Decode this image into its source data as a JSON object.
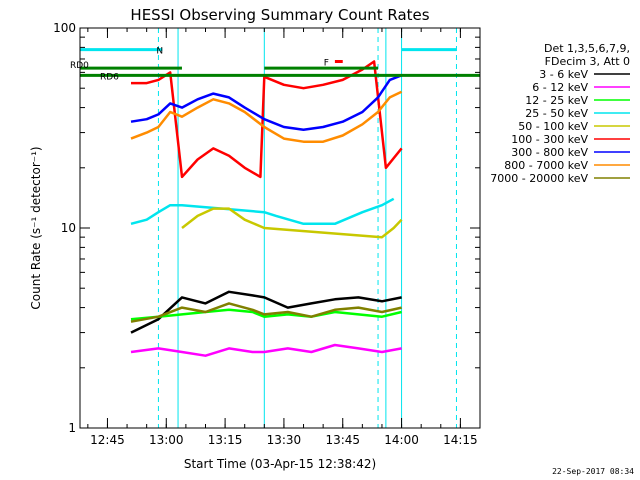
{
  "chart_data": {
    "type": "line",
    "title": "HESSI Observing Summary Count Rates",
    "xlabel": "Start Time (03-Apr-15 12:38:42)",
    "ylabel": "Count Rate (s⁻¹ detector⁻¹)",
    "footer_date": "22-Sep-2017 08:34",
    "xlim": [
      "12:38",
      "14:20"
    ],
    "x_ticks": [
      "12:45",
      "13:00",
      "13:15",
      "13:30",
      "13:45",
      "14:00",
      "14:15"
    ],
    "ylim": [
      1,
      100
    ],
    "y_scale": "log",
    "y_ticks": [
      {
        "value": 1,
        "label": "1"
      },
      {
        "value": 10,
        "label": "10"
      },
      {
        "value": 100,
        "label": "100"
      }
    ],
    "legend": {
      "placement": "right-outside",
      "header": [
        "Det 1,3,5,6,7,9,",
        "FDecim 3, Att 0"
      ]
    },
    "flags": [
      {
        "name": "N",
        "color": "#00e5ee",
        "level": 78,
        "segments": [
          [
            "12:38",
            "12:59"
          ],
          [
            "14:00",
            "14:14"
          ]
        ]
      },
      {
        "name": "F",
        "color": "#ff0000",
        "level": 68,
        "segments": [
          [
            "13:43",
            "13:45"
          ]
        ]
      },
      {
        "name": "RD0",
        "color": "#008000",
        "level": 63,
        "segments": [
          [
            "12:38",
            "13:04"
          ],
          [
            "13:25",
            "13:54"
          ]
        ]
      },
      {
        "name": "RD6",
        "color": "#008000",
        "level": 58,
        "segments": [
          [
            "12:38",
            "14:20"
          ]
        ]
      }
    ],
    "vlines": {
      "color": "#00e5ee",
      "solid": [
        "12:38",
        "13:03",
        "13:25",
        "13:56",
        "14:00"
      ],
      "dashed": [
        "12:58",
        "13:54",
        "14:14"
      ]
    },
    "series": [
      {
        "name": "3 - 6 keV",
        "color": "#000000",
        "x": [
          "12:51",
          "12:58",
          "13:04",
          "13:10",
          "13:16",
          "13:22",
          "13:25",
          "13:31",
          "13:37",
          "13:43",
          "13:49",
          "13:55",
          "14:00"
        ],
        "y": [
          3,
          3.5,
          4.5,
          4.2,
          4.8,
          4.6,
          4.5,
          4.0,
          4.2,
          4.4,
          4.5,
          4.3,
          4.5
        ]
      },
      {
        "name": "6 - 12 keV",
        "color": "#ff00ff",
        "x": [
          "12:51",
          "12:58",
          "13:04",
          "13:10",
          "13:16",
          "13:22",
          "13:25",
          "13:31",
          "13:37",
          "13:43",
          "13:49",
          "13:55",
          "14:00"
        ],
        "y": [
          2.4,
          2.5,
          2.4,
          2.3,
          2.5,
          2.4,
          2.4,
          2.5,
          2.4,
          2.6,
          2.5,
          2.4,
          2.5
        ]
      },
      {
        "name": "12 - 25 keV",
        "color": "#00ff00",
        "x": [
          "12:51",
          "12:58",
          "13:04",
          "13:10",
          "13:16",
          "13:22",
          "13:25",
          "13:31",
          "13:37",
          "13:43",
          "13:49",
          "13:55",
          "14:00"
        ],
        "y": [
          3.5,
          3.6,
          3.7,
          3.8,
          3.9,
          3.8,
          3.6,
          3.7,
          3.6,
          3.8,
          3.7,
          3.6,
          3.8
        ]
      },
      {
        "name": "25 - 50 keV",
        "color": "#00e5ee",
        "x": [
          "12:51",
          "12:55",
          "12:58",
          "13:01",
          "13:04",
          "13:25",
          "13:28",
          "13:35",
          "13:43",
          "13:50",
          "13:55",
          "13:58"
        ],
        "y": [
          10.5,
          11,
          12,
          13,
          13,
          12,
          11.5,
          10.5,
          10.5,
          12,
          13,
          14
        ]
      },
      {
        "name": "50 - 100 keV",
        "color": "#c8c800",
        "x": [
          "13:04",
          "13:08",
          "13:12",
          "13:16",
          "13:20",
          "13:25",
          "13:55",
          "13:58",
          "14:00"
        ],
        "y": [
          10,
          11.5,
          12.5,
          12.5,
          11,
          10,
          9,
          10,
          11
        ]
      },
      {
        "name": "100 - 300 keV",
        "color": "#ff0000",
        "x": [
          "12:51",
          "12:55",
          "12:58",
          "13:01",
          "13:04",
          "13:08",
          "13:12",
          "13:16",
          "13:20",
          "13:24",
          "13:25",
          "13:30",
          "13:35",
          "13:40",
          "13:45",
          "13:50",
          "13:53",
          "13:56",
          "14:00"
        ],
        "y": [
          53,
          53,
          55,
          60,
          18,
          22,
          25,
          23,
          20,
          18,
          57,
          52,
          50,
          52,
          55,
          62,
          68,
          20,
          25
        ]
      },
      {
        "name": "300 - 800 keV",
        "color": "#0000ff",
        "x": [
          "12:51",
          "12:55",
          "12:58",
          "13:01",
          "13:04",
          "13:08",
          "13:12",
          "13:16",
          "13:20",
          "13:25",
          "13:30",
          "13:35",
          "13:40",
          "13:45",
          "13:50",
          "13:54",
          "13:57",
          "14:00"
        ],
        "y": [
          34,
          35,
          37,
          42,
          40,
          44,
          47,
          45,
          40,
          35,
          32,
          31,
          32,
          34,
          38,
          45,
          55,
          58
        ]
      },
      {
        "name": "800 - 7000 keV",
        "color": "#ff8c00",
        "x": [
          "12:51",
          "12:55",
          "12:58",
          "13:01",
          "13:04",
          "13:08",
          "13:12",
          "13:16",
          "13:20",
          "13:25",
          "13:30",
          "13:35",
          "13:40",
          "13:45",
          "13:50",
          "13:54",
          "13:57",
          "14:00"
        ],
        "y": [
          28,
          30,
          32,
          38,
          36,
          40,
          44,
          42,
          38,
          32,
          28,
          27,
          27,
          29,
          33,
          38,
          45,
          48
        ]
      },
      {
        "name": "7000 - 20000 keV",
        "color": "#808000",
        "x": [
          "12:51",
          "12:58",
          "13:04",
          "13:10",
          "13:16",
          "13:22",
          "13:25",
          "13:31",
          "13:37",
          "13:43",
          "13:49",
          "13:55",
          "14:00"
        ],
        "y": [
          3.4,
          3.6,
          4.0,
          3.8,
          4.2,
          3.9,
          3.7,
          3.8,
          3.6,
          3.9,
          4.0,
          3.8,
          4.0
        ]
      }
    ]
  }
}
